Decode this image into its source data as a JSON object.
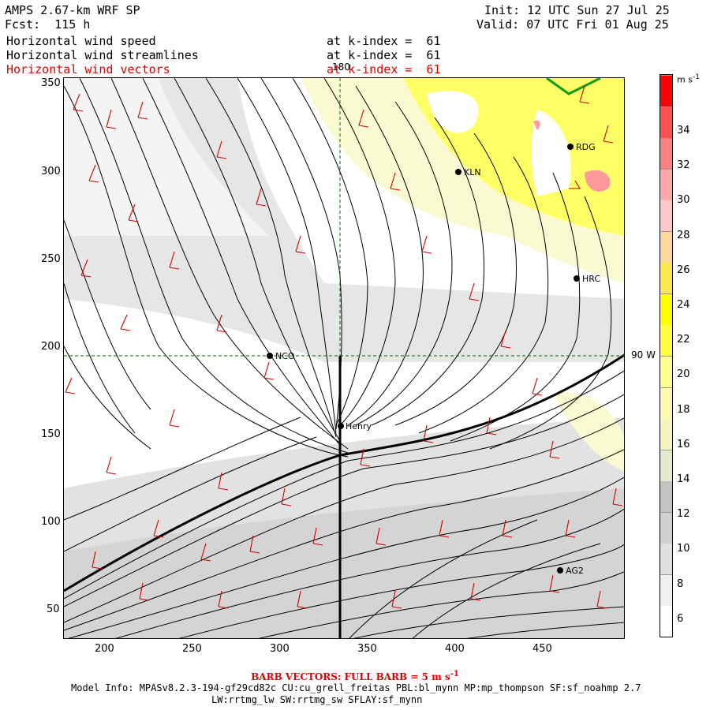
{
  "header": {
    "title": "AMPS 2.67-km WRF SP",
    "fcst": "Fcst:  115 h",
    "init": "Init: 12 UTC Sun 27 Jul 25",
    "valid": "Valid: 07 UTC Fri 01 Aug 25"
  },
  "fields": [
    {
      "label": "Horizontal wind speed",
      "level": "at k-index =  61",
      "color": "#000000"
    },
    {
      "label": "Horizontal wind streamlines",
      "level": "at k-index =  61",
      "color": "#000000"
    },
    {
      "label": "Horizontal wind vectors",
      "level": "at k-index =  61",
      "color": "#e00000"
    }
  ],
  "map": {
    "y_ticks": [
      "350",
      "300",
      "250",
      "200",
      "150",
      "100",
      "50"
    ],
    "x_ticks": [
      "200",
      "250",
      "300",
      "350",
      "400",
      "450"
    ],
    "meridian_top_label": "180",
    "meridian_right_label": "90 W",
    "stations": [
      {
        "name": "RDG"
      },
      {
        "name": "KLN"
      },
      {
        "name": "HRC"
      },
      {
        "name": "NCO"
      },
      {
        "name": "Henry"
      },
      {
        "name": "AG2"
      }
    ]
  },
  "colorbar": {
    "unit": "m s",
    "unit_exp": "-1",
    "labels": [
      "34",
      "32",
      "30",
      "28",
      "26",
      "24",
      "22",
      "20",
      "18",
      "16",
      "14",
      "12",
      "10",
      "8",
      "6"
    ],
    "colors": [
      "#ffffff",
      "#f0f0f0",
      "#e0e0e0",
      "#d0d0d0",
      "#c4c4c4",
      "#e8e8d0",
      "#f4f4c0",
      "#fafab0",
      "#ffff90",
      "#ffff40",
      "#ffff00",
      "#ffe84a",
      "#ffd79a",
      "#ffc8c8",
      "#ffa8a8",
      "#ff8080",
      "#ff5050",
      "#ff0000"
    ]
  },
  "footer": {
    "barb_note": "BARB VECTORS:  FULL BARB = 5 m s",
    "barb_exp": "-1",
    "model_line1": "Model Info: MPASv8.2.3-194-gf29cd82c CU:cu_grell_freitas PBL:bl_mynn MP:mp_thompson SF:sf_noahmp 2.7",
    "model_line2": "LW:rrtmg_lw SW:rrtmg_sw SFLAY:sf_mynn"
  }
}
